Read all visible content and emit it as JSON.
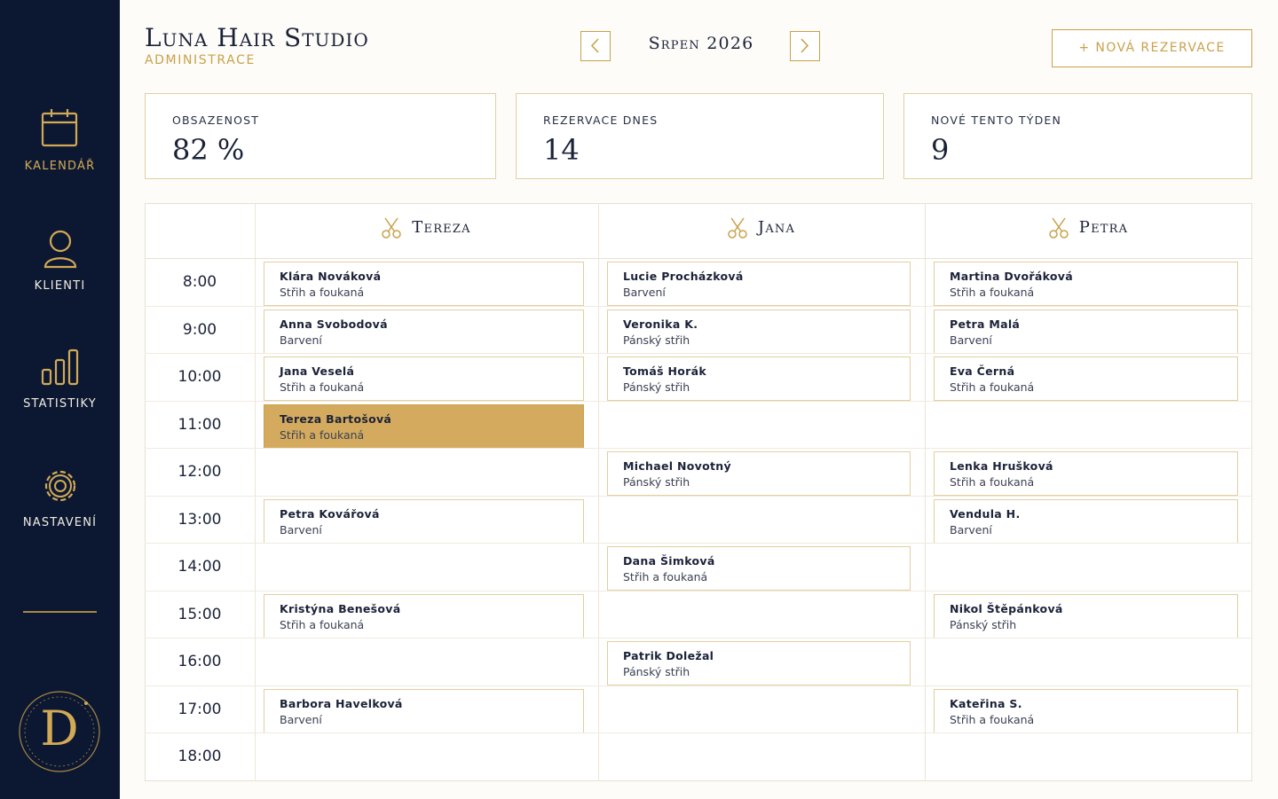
{
  "sidebar": {
    "items": [
      "KALENDÁŘ",
      "KLIENTI",
      "STATISTIKY",
      "NASTAVENÍ"
    ],
    "logo": "D"
  },
  "header": {
    "title": "Luna Hair Studio",
    "subtitle": "ADMINISTRACE",
    "month": "Srpen 2026",
    "new_button": "+ NOVÁ REZERVACE"
  },
  "stats": [
    {
      "label": "OBSAZENOST",
      "value": "82 %"
    },
    {
      "label": "REZERVACE DNES",
      "value": 14
    },
    {
      "label": "NOVÉ TENTO TÝDEN",
      "value": 9
    }
  ],
  "calendar": {
    "stylists": [
      "Tereza",
      "Jana",
      "Petra"
    ],
    "rows": [
      {
        "time": "8:00",
        "cells": [
          {
            "client": "Klára Nováková",
            "service": "Střih a foukaná"
          },
          {
            "client": "Lucie Procházková",
            "service": "Barvení"
          },
          {
            "client": "Martina Dvořáková",
            "service": "Střih a foukaná"
          }
        ]
      },
      {
        "time": "9:00",
        "cells": [
          {
            "client": "Anna Svobodová",
            "service": "Barvení"
          },
          {
            "client": "Veronika K.",
            "service": "Pánský střih"
          },
          {
            "client": "Petra Malá",
            "service": "Barvení"
          }
        ]
      },
      {
        "time": "10:00",
        "cells": [
          {
            "client": "Jana Veselá",
            "service": "Střih a foukaná"
          },
          {
            "client": "Tomáš Horák",
            "service": "Pánský střih"
          },
          {
            "client": "Eva Černá",
            "service": "Střih a foukaná"
          }
        ]
      },
      {
        "time": "11:00",
        "cells": [
          {
            "client": "Tereza Bartošová",
            "service": "Střih a foukaná",
            "highlighted": true
          },
          null,
          null
        ]
      },
      {
        "time": "12:00",
        "cells": [
          null,
          {
            "client": "Michael Novotný",
            "service": "Pánský střih"
          },
          {
            "client": "Lenka Hrušková",
            "service": "Střih a foukaná"
          }
        ]
      },
      {
        "time": "13:00",
        "cells": [
          {
            "client": "Petra Kovářová",
            "service": "Barvení"
          },
          null,
          {
            "client": "Vendula H.",
            "service": "Barvení"
          }
        ]
      },
      {
        "time": "14:00",
        "cells": [
          null,
          {
            "client": "Dana Šimková",
            "service": "Střih a foukaná"
          },
          null
        ]
      },
      {
        "time": "15:00",
        "cells": [
          {
            "client": "Kristýna Benešová",
            "service": "Střih a foukaná"
          },
          null,
          {
            "client": "Nikol Štěpánková",
            "service": "Pánský střih"
          }
        ]
      },
      {
        "time": "16:00",
        "cells": [
          null,
          {
            "client": "Patrik Doležal",
            "service": "Pánský střih"
          },
          null
        ]
      },
      {
        "time": "17:00",
        "cells": [
          {
            "client": "Barbora Havelková",
            "service": "Barvení"
          },
          null,
          {
            "client": "Kateřina S.",
            "service": "Střih a foukaná"
          }
        ]
      },
      {
        "time": "18:00",
        "cells": [
          null,
          null,
          null
        ]
      }
    ]
  }
}
